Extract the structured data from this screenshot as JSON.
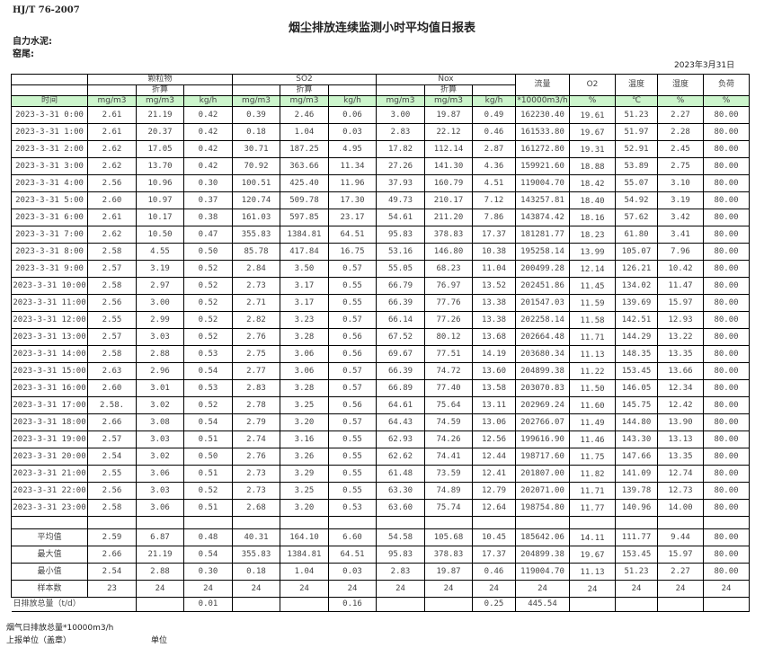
{
  "header": {
    "standard": "HJ/T   76-2007",
    "title": "烟尘排放连续监测小时平均值日报表",
    "company": "自力水泥:",
    "kiln": "窑尾:",
    "date": "2023年3月31日"
  },
  "columns": {
    "groups": [
      "颗粒物",
      "SO2",
      "Nox"
    ],
    "converted": "折算",
    "flow": "流量",
    "o2": "O2",
    "temperature": "温度",
    "humidity": "湿度",
    "load": "负荷",
    "units": [
      "时间",
      "mg/m3",
      "mg/m3",
      "kg/h",
      "mg/m3",
      "mg/m3",
      "kg/h",
      "mg/m3",
      "mg/m3",
      "kg/h",
      "*10000m3/h",
      "%",
      "℃",
      "%",
      "%"
    ]
  },
  "rows": [
    [
      "2023-3-31 0:00",
      "2.61",
      "21.19",
      "0.42",
      "0.39",
      "2.46",
      "0.06",
      "3.00",
      "19.87",
      "0.49",
      "162230.40",
      "19.61",
      "51.23",
      "2.27",
      "80.00"
    ],
    [
      "2023-3-31 1:00",
      "2.61",
      "20.37",
      "0.42",
      "0.18",
      "1.04",
      "0.03",
      "2.83",
      "22.12",
      "0.46",
      "161533.80",
      "19.67",
      "51.97",
      "2.28",
      "80.00"
    ],
    [
      "2023-3-31 2:00",
      "2.62",
      "17.05",
      "0.42",
      "30.71",
      "187.25",
      "4.95",
      "17.82",
      "112.14",
      "2.87",
      "161272.80",
      "19.31",
      "52.91",
      "2.45",
      "80.00"
    ],
    [
      "2023-3-31 3:00",
      "2.62",
      "13.70",
      "0.42",
      "70.92",
      "363.66",
      "11.34",
      "27.26",
      "141.30",
      "4.36",
      "159921.60",
      "18.88",
      "53.89",
      "2.75",
      "80.00"
    ],
    [
      "2023-3-31 4:00",
      "2.56",
      "10.96",
      "0.30",
      "100.51",
      "425.40",
      "11.96",
      "37.93",
      "160.79",
      "4.51",
      "119004.70",
      "18.42",
      "55.07",
      "3.10",
      "80.00"
    ],
    [
      "2023-3-31 5:00",
      "2.60",
      "10.97",
      "0.37",
      "120.74",
      "509.78",
      "17.30",
      "49.73",
      "210.17",
      "7.12",
      "143257.81",
      "18.40",
      "54.92",
      "3.19",
      "80.00"
    ],
    [
      "2023-3-31 6:00",
      "2.61",
      "10.17",
      "0.38",
      "161.03",
      "597.85",
      "23.17",
      "54.61",
      "211.20",
      "7.86",
      "143874.42",
      "18.16",
      "57.62",
      "3.42",
      "80.00"
    ],
    [
      "2023-3-31 7:00",
      "2.62",
      "10.50",
      "0.47",
      "355.83",
      "1384.81",
      "64.51",
      "95.83",
      "378.83",
      "17.37",
      "181281.77",
      "18.23",
      "61.80",
      "3.41",
      "80.00"
    ],
    [
      "2023-3-31 8:00",
      "2.58",
      "4.55",
      "0.50",
      "85.78",
      "417.84",
      "16.75",
      "53.16",
      "146.80",
      "10.38",
      "195258.14",
      "13.99",
      "105.07",
      "7.96",
      "80.00"
    ],
    [
      "2023-3-31 9:00",
      "2.57",
      "3.19",
      "0.52",
      "2.84",
      "3.50",
      "0.57",
      "55.05",
      "68.23",
      "11.04",
      "200499.28",
      "12.14",
      "126.21",
      "10.42",
      "80.00"
    ],
    [
      "2023-3-31 10:00",
      "2.58",
      "2.97",
      "0.52",
      "2.73",
      "3.17",
      "0.55",
      "66.79",
      "76.97",
      "13.52",
      "202451.86",
      "11.45",
      "134.02",
      "11.47",
      "80.00"
    ],
    [
      "2023-3-31 11:00",
      "2.56",
      "3.00",
      "0.52",
      "2.71",
      "3.17",
      "0.55",
      "66.39",
      "77.76",
      "13.38",
      "201547.03",
      "11.59",
      "139.69",
      "15.97",
      "80.00"
    ],
    [
      "2023-3-31 12:00",
      "2.55",
      "2.99",
      "0.52",
      "2.82",
      "3.23",
      "0.57",
      "66.14",
      "77.26",
      "13.38",
      "202258.14",
      "11.58",
      "142.51",
      "12.93",
      "80.00"
    ],
    [
      "2023-3-31 13:00",
      "2.57",
      "3.03",
      "0.52",
      "2.76",
      "3.28",
      "0.56",
      "67.52",
      "80.12",
      "13.68",
      "202664.48",
      "11.71",
      "144.29",
      "13.22",
      "80.00"
    ],
    [
      "2023-3-31 14:00",
      "2.58",
      "2.88",
      "0.53",
      "2.75",
      "3.06",
      "0.56",
      "69.67",
      "77.51",
      "14.19",
      "203680.34",
      "11.13",
      "148.35",
      "13.35",
      "80.00"
    ],
    [
      "2023-3-31 15:00",
      "2.63",
      "2.96",
      "0.54",
      "2.77",
      "3.06",
      "0.57",
      "66.39",
      "74.72",
      "13.60",
      "204899.38",
      "11.22",
      "153.45",
      "13.66",
      "80.00"
    ],
    [
      "2023-3-31 16:00",
      "2.60",
      "3.01",
      "0.53",
      "2.83",
      "3.28",
      "0.57",
      "66.89",
      "77.40",
      "13.58",
      "203070.83",
      "11.50",
      "146.05",
      "12.34",
      "80.00"
    ],
    [
      "2023-3-31 17:00",
      "2.58.",
      "3.02",
      "0.52",
      "2.78",
      "3.25",
      "0.56",
      "64.61",
      "75.64",
      "13.11",
      "202969.24",
      "11.60",
      "145.75",
      "12.42",
      "80.00"
    ],
    [
      "2023-3-31 18:00",
      "2.66",
      "3.08",
      "0.54",
      "2.79",
      "3.20",
      "0.57",
      "64.43",
      "74.59",
      "13.06",
      "202766.07",
      "11.49",
      "144.80",
      "13.90",
      "80.00"
    ],
    [
      "2023-3-31 19:00",
      "2.57",
      "3.03",
      "0.51",
      "2.74",
      "3.16",
      "0.55",
      "62.93",
      "74.26",
      "12.56",
      "199616.90",
      "11.46",
      "143.30",
      "13.13",
      "80.00"
    ],
    [
      "2023-3-31 20:00",
      "2.54",
      "3.02",
      "0.50",
      "2.76",
      "3.26",
      "0.55",
      "62.62",
      "74.41",
      "12.44",
      "198717.60",
      "11.75",
      "147.66",
      "13.35",
      "80.00"
    ],
    [
      "2023-3-31 21:00",
      "2.55",
      "3.06",
      "0.51",
      "2.73",
      "3.29",
      "0.55",
      "61.48",
      "73.59",
      "12.41",
      "201807.00",
      "11.82",
      "141.09",
      "12.74",
      "80.00"
    ],
    [
      "2023-3-31 22:00",
      "2.56",
      "3.03",
      "0.52",
      "2.73",
      "3.25",
      "0.55",
      "63.30",
      "74.89",
      "12.79",
      "202071.00",
      "11.71",
      "139.78",
      "12.73",
      "80.00"
    ],
    [
      "2023-3-31 23:00",
      "2.58",
      "3.06",
      "0.51",
      "2.68",
      "3.20",
      "0.53",
      "63.60",
      "75.74",
      "12.64",
      "198754.80",
      "11.77",
      "140.96",
      "14.00",
      "80.00"
    ]
  ],
  "stats": [
    [
      "平均值",
      "2.59",
      "6.87",
      "0.48",
      "40.31",
      "164.10",
      "6.60",
      "54.58",
      "105.68",
      "10.45",
      "185642.06",
      "14.11",
      "111.77",
      "9.44",
      "80.00"
    ],
    [
      "最大值",
      "2.66",
      "21.19",
      "0.54",
      "355.83",
      "1384.81",
      "64.51",
      "95.83",
      "378.83",
      "17.37",
      "204899.38",
      "19.67",
      "153.45",
      "15.97",
      "80.00"
    ],
    [
      "最小值",
      "2.54",
      "2.88",
      "0.30",
      "0.18",
      "1.04",
      "0.03",
      "2.83",
      "19.87",
      "0.46",
      "119004.70",
      "11.13",
      "51.23",
      "2.27",
      "80.00"
    ],
    [
      "样本数",
      "23",
      "24",
      "24",
      "24",
      "24",
      "24",
      "24",
      "24",
      "24",
      "24",
      "24",
      "24",
      "24",
      "24"
    ]
  ],
  "daily_total": {
    "label": "日排放总量（t/d）",
    "values": [
      "",
      "0.01",
      "",
      "",
      "0.16",
      "",
      "",
      "0.25",
      "445.54",
      "",
      "",
      "",
      ""
    ]
  },
  "footer": {
    "flue_gas_total": "烟气日排放总量*10000m3/h",
    "reporting_unit": "上报单位（盖章）",
    "unit": "单位"
  },
  "colors": {
    "unit_row_bg": "#ccf5cc"
  }
}
